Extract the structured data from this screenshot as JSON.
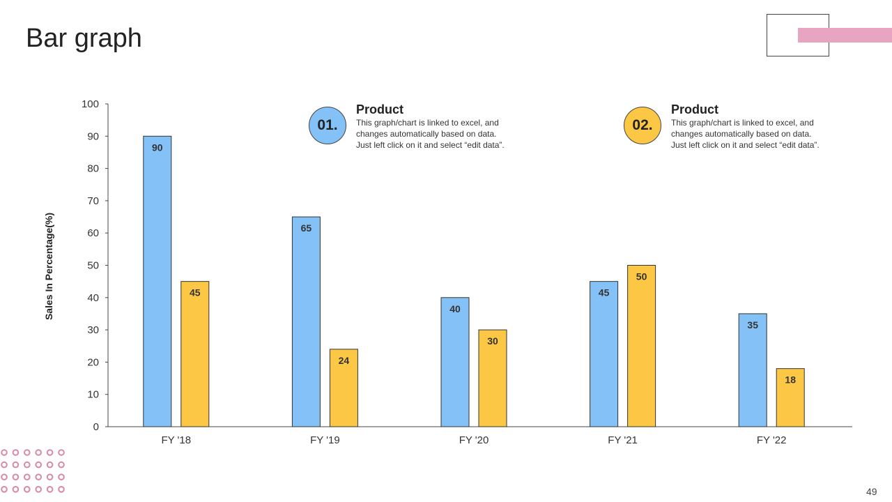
{
  "slide": {
    "title": "Bar graph",
    "page_number": "49"
  },
  "colors": {
    "series1": "#83C1F7",
    "series2": "#FBC744",
    "accent_pink": "#E8A5C2",
    "dot_pink": "#D889A8",
    "axis": "#444444"
  },
  "legend": [
    {
      "number": "01.",
      "title": "Product",
      "description_lines": [
        "This graph/chart is linked to excel, and",
        "changes automatically based on data.",
        "Just left click on it and select “edit data”."
      ]
    },
    {
      "number": "02.",
      "title": "Product",
      "description_lines": [
        "This graph/chart is linked to excel, and",
        "changes automatically based on data.",
        "Just left click on it and select “edit data”."
      ]
    }
  ],
  "chart_data": {
    "type": "bar",
    "title": "",
    "xlabel": "",
    "ylabel": "Sales In Percentage(%)",
    "ylim": [
      0,
      100
    ],
    "yticks": [
      0,
      10,
      20,
      30,
      40,
      50,
      60,
      70,
      80,
      90,
      100
    ],
    "categories": [
      "FY '18",
      "FY '19",
      "FY '20",
      "FY '21",
      "FY '22"
    ],
    "series": [
      {
        "name": "Product 01",
        "values": [
          90,
          65,
          40,
          45,
          35
        ]
      },
      {
        "name": "Product 02",
        "values": [
          45,
          24,
          30,
          50,
          18
        ]
      }
    ],
    "grid": false,
    "legend_position": "top"
  }
}
